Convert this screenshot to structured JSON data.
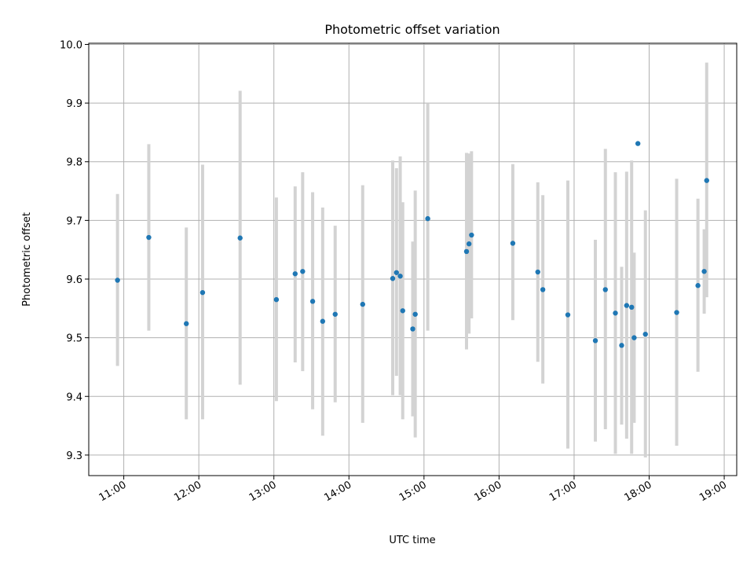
{
  "chart_data": {
    "type": "scatter",
    "title": "Photometric offset variation",
    "xlabel": "UTC time",
    "ylabel": "Photometric offset",
    "x_unit": "hours UTC",
    "xlim": [
      "10:32",
      "19:10"
    ],
    "ylim": [
      9.265,
      10.002
    ],
    "x_ticks": [
      "11:00",
      "12:00",
      "13:00",
      "14:00",
      "15:00",
      "16:00",
      "17:00",
      "18:00",
      "19:00"
    ],
    "y_ticks": [
      "9.3",
      "9.4",
      "9.5",
      "9.6",
      "9.7",
      "9.8",
      "9.9",
      "10.0"
    ],
    "grid": true,
    "colors": {
      "point": "#1f77b4",
      "errorbar": "#d3d3d3",
      "grid": "#b0b0b0"
    },
    "points": [
      {
        "x": "10:55",
        "y": 9.598,
        "lo": 9.452,
        "hi": 9.745
      },
      {
        "x": "11:20",
        "y": 9.671,
        "lo": 9.512,
        "hi": 9.83
      },
      {
        "x": "11:50",
        "y": 9.524,
        "lo": 9.361,
        "hi": 9.688
      },
      {
        "x": "12:03",
        "y": 9.577,
        "lo": 9.361,
        "hi": 9.795
      },
      {
        "x": "12:33",
        "y": 9.67,
        "lo": 9.42,
        "hi": 9.921
      },
      {
        "x": "13:02",
        "y": 9.565,
        "lo": 9.392,
        "hi": 9.739
      },
      {
        "x": "13:17",
        "y": 9.609,
        "lo": 9.458,
        "hi": 9.758
      },
      {
        "x": "13:23",
        "y": 9.613,
        "lo": 9.443,
        "hi": 9.782
      },
      {
        "x": "13:31",
        "y": 9.562,
        "lo": 9.378,
        "hi": 9.748
      },
      {
        "x": "13:39",
        "y": 9.528,
        "lo": 9.333,
        "hi": 9.722
      },
      {
        "x": "13:49",
        "y": 9.54,
        "lo": 9.39,
        "hi": 9.691
      },
      {
        "x": "14:11",
        "y": 9.557,
        "lo": 9.355,
        "hi": 9.76
      },
      {
        "x": "14:35",
        "y": 9.601,
        "lo": 9.402,
        "hi": 9.802
      },
      {
        "x": "14:38",
        "y": 9.611,
        "lo": 9.435,
        "hi": 9.789
      },
      {
        "x": "14:41",
        "y": 9.605,
        "lo": 9.402,
        "hi": 9.809
      },
      {
        "x": "14:43",
        "y": 9.546,
        "lo": 9.361,
        "hi": 9.731
      },
      {
        "x": "14:51",
        "y": 9.515,
        "lo": 9.366,
        "hi": 9.664
      },
      {
        "x": "14:53",
        "y": 9.54,
        "lo": 9.33,
        "hi": 9.751
      },
      {
        "x": "15:03",
        "y": 9.703,
        "lo": 9.512,
        "hi": 9.899
      },
      {
        "x": "15:34",
        "y": 9.647,
        "lo": 9.48,
        "hi": 9.815
      },
      {
        "x": "15:36",
        "y": 9.66,
        "lo": 9.507,
        "hi": 9.814
      },
      {
        "x": "15:38",
        "y": 9.675,
        "lo": 9.533,
        "hi": 9.818
      },
      {
        "x": "16:11",
        "y": 9.661,
        "lo": 9.53,
        "hi": 9.796
      },
      {
        "x": "16:31",
        "y": 9.612,
        "lo": 9.459,
        "hi": 9.765
      },
      {
        "x": "16:35",
        "y": 9.582,
        "lo": 9.422,
        "hi": 9.743
      },
      {
        "x": "16:55",
        "y": 9.539,
        "lo": 9.311,
        "hi": 9.768
      },
      {
        "x": "17:17",
        "y": 9.495,
        "lo": 9.323,
        "hi": 9.667
      },
      {
        "x": "17:25",
        "y": 9.582,
        "lo": 9.344,
        "hi": 9.822
      },
      {
        "x": "17:33",
        "y": 9.542,
        "lo": 9.302,
        "hi": 9.782
      },
      {
        "x": "17:38",
        "y": 9.487,
        "lo": 9.352,
        "hi": 9.621
      },
      {
        "x": "17:42",
        "y": 9.555,
        "lo": 9.328,
        "hi": 9.783
      },
      {
        "x": "17:46",
        "y": 9.552,
        "lo": 9.302,
        "hi": 9.802
      },
      {
        "x": "17:48",
        "y": 9.5,
        "lo": 9.355,
        "hi": 9.645
      },
      {
        "x": "17:51",
        "y": 9.831,
        "lo": 9.831,
        "hi": 9.831
      },
      {
        "x": "17:57",
        "y": 9.506,
        "lo": 9.296,
        "hi": 9.717
      },
      {
        "x": "18:22",
        "y": 9.543,
        "lo": 9.316,
        "hi": 9.771
      },
      {
        "x": "18:39",
        "y": 9.589,
        "lo": 9.442,
        "hi": 9.737
      },
      {
        "x": "18:44",
        "y": 9.613,
        "lo": 9.541,
        "hi": 9.685
      },
      {
        "x": "18:46",
        "y": 9.768,
        "lo": 9.569,
        "hi": 9.969
      }
    ]
  }
}
